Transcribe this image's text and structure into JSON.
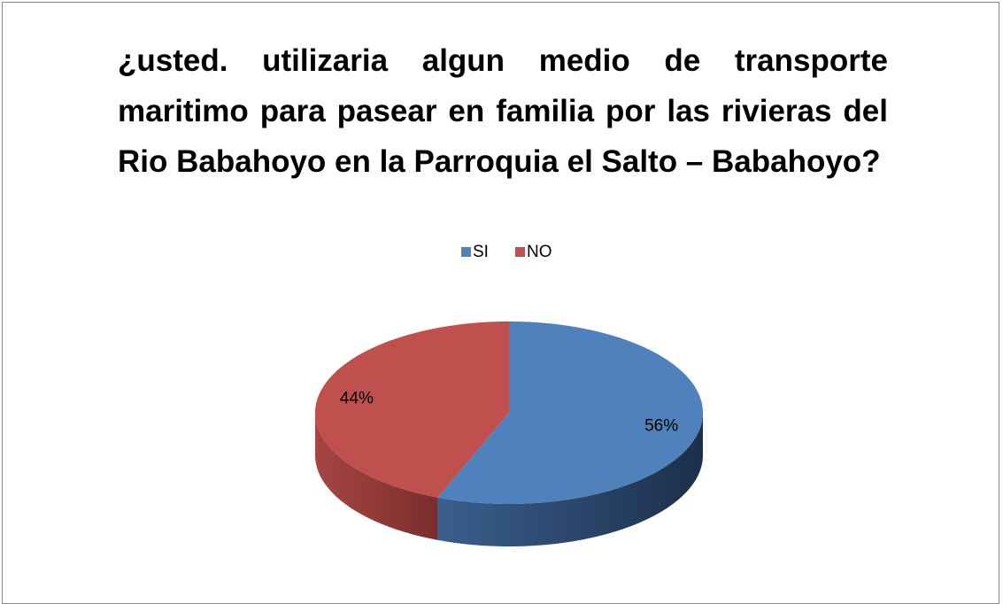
{
  "chart_data": {
    "type": "pie",
    "title": "¿usted. utilizaria algun medio de transporte maritimo para pasear en familia por las  rivieras del Rio Babahoyo en la Parroquia el Salto – Babahoyo?",
    "categories": [
      "SI",
      "NO"
    ],
    "values": [
      56,
      44
    ],
    "value_labels": [
      "56%",
      "44%"
    ],
    "colors": [
      "#4f81bd",
      "#c0504d"
    ],
    "legend": "top"
  }
}
